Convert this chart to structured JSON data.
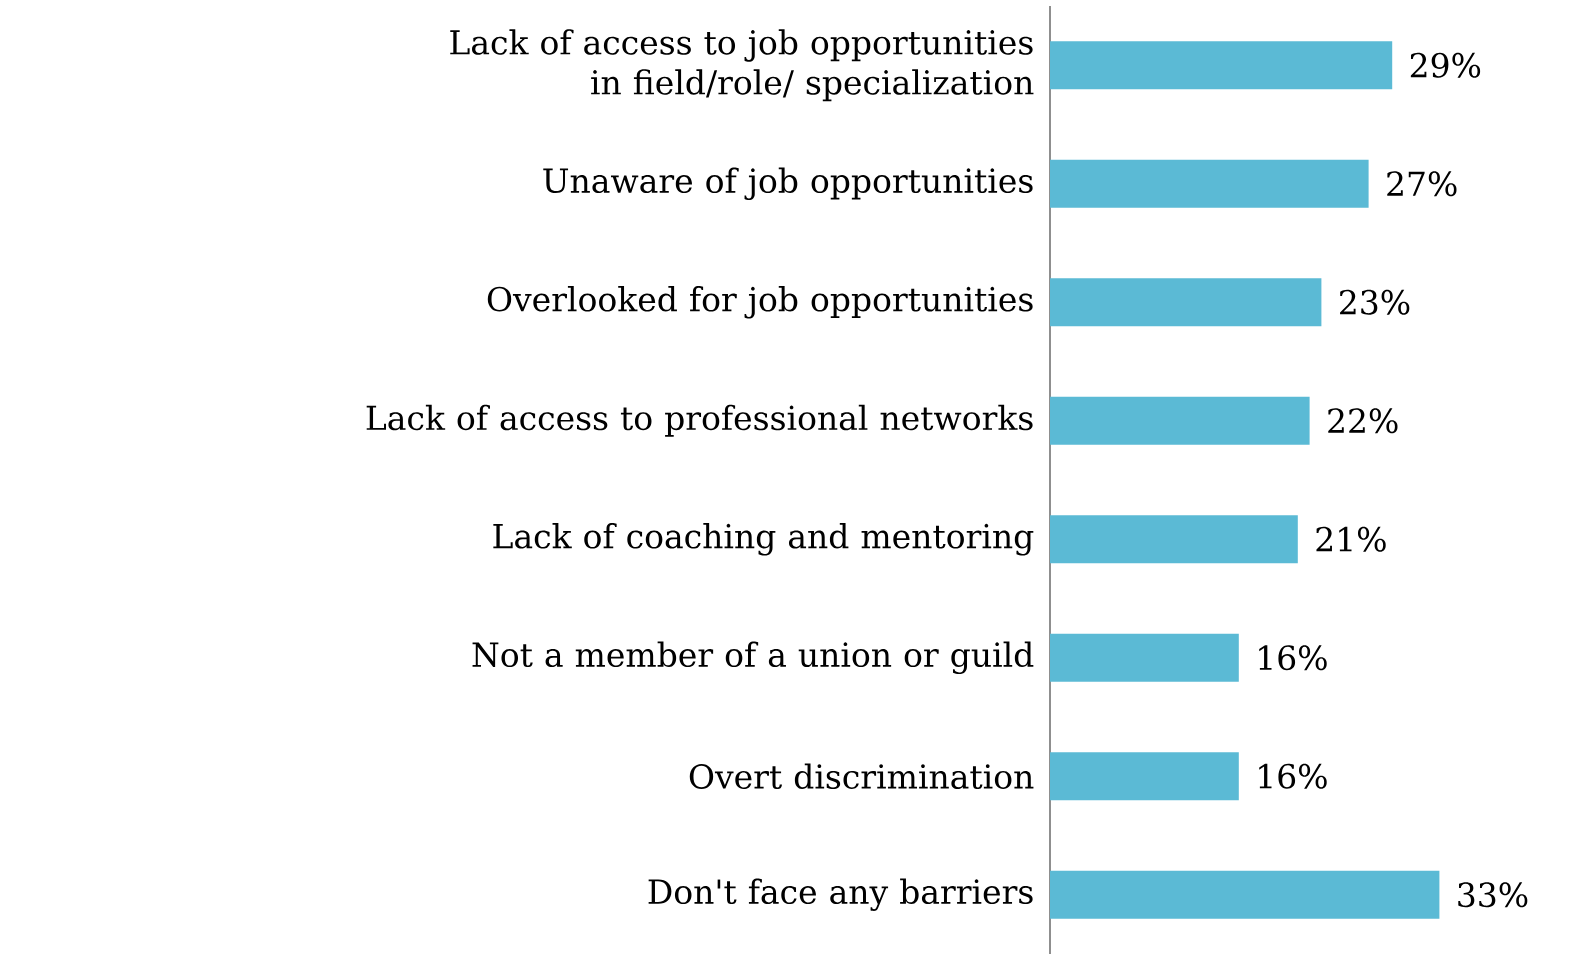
{
  "chart_data": {
    "type": "bar",
    "orientation": "horizontal",
    "categories": [
      "Lack of access to job opportunities in field/role/ specialization",
      "Unaware of job opportunities",
      "Overlooked for job opportunities",
      "Lack of access to professional networks",
      "Lack of coaching and mentoring",
      "Not a member of a union or guild",
      "Overt discrimination",
      "Don't face any barriers"
    ],
    "values": [
      29,
      27,
      23,
      22,
      21,
      16,
      16,
      33
    ],
    "value_labels": [
      "29%",
      "27%",
      "23%",
      "22%",
      "21%",
      "16%",
      "16%",
      "33%"
    ],
    "color": "#5bbad5"
  }
}
